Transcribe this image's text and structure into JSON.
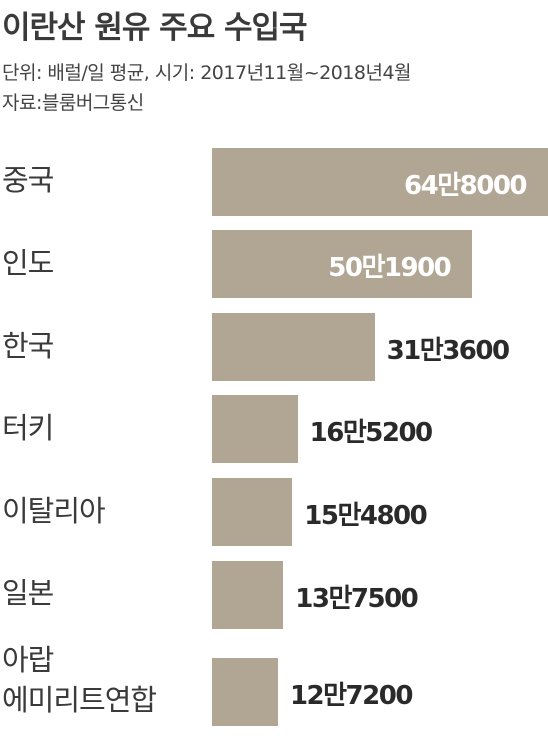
{
  "chart_data": {
    "type": "bar",
    "orientation": "horizontal",
    "title": "이란산 원유 주요 수입국",
    "subtitle": "단위: 배럴/일 평균, 시기: 2017년11월~2018년4월",
    "source": "자료:블룸버그통신",
    "categories": [
      "중국",
      "인도",
      "한국",
      "터키",
      "이탈리아",
      "일본",
      "아랍\n에미리트연합"
    ],
    "values": [
      648000,
      501900,
      313600,
      165200,
      154800,
      137500,
      127200
    ],
    "value_labels": [
      "64만8000",
      "50만1900",
      "31만3600",
      "16만5200",
      "15만4800",
      "13만7500",
      "12만7200"
    ],
    "color": "#b1a594"
  }
}
